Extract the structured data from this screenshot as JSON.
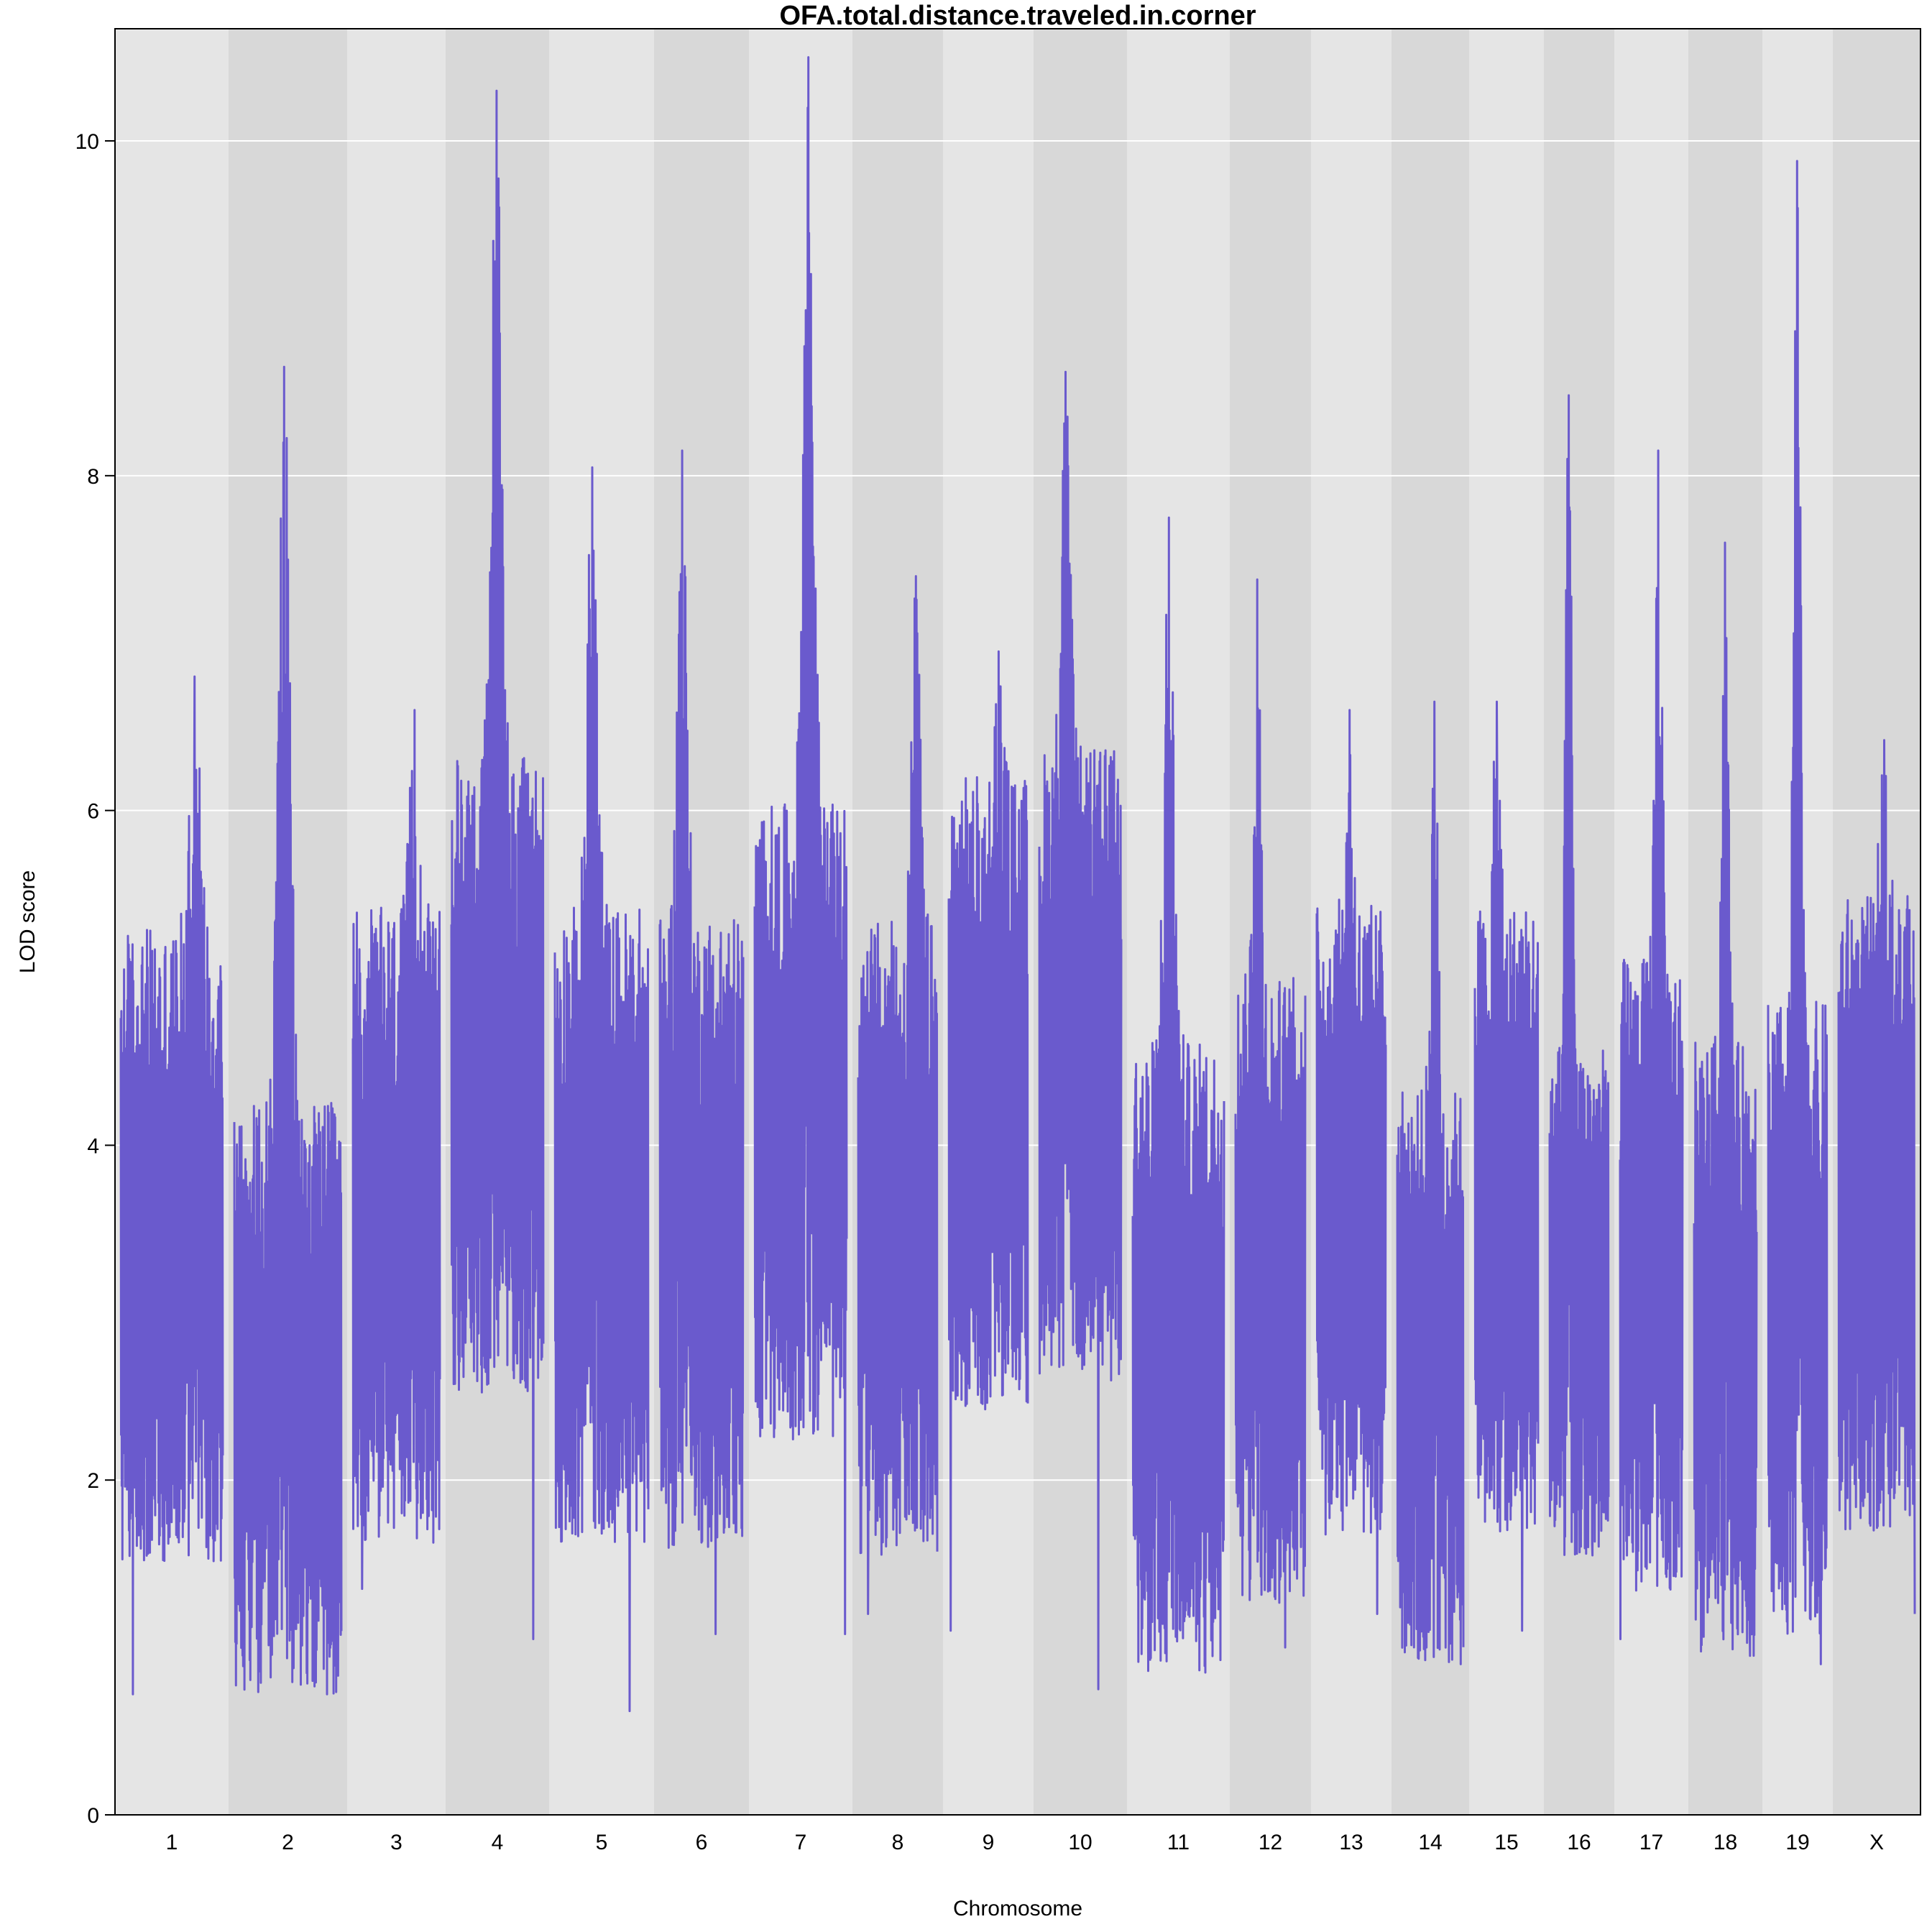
{
  "chart_data": {
    "type": "line",
    "title": "OFA.total.distance.traveled.in.corner",
    "xlabel": "Chromosome",
    "ylabel": "LOD score",
    "ylim": [
      0,
      10.67
    ],
    "yticks": [
      0,
      2,
      4,
      6,
      8,
      10
    ],
    "grid": "horizontal",
    "colors": {
      "line": "#6a5acd",
      "band_light": "#e5e5e5",
      "band_dark": "#d8d8d8",
      "grid": "#ffffff"
    },
    "chromosomes": [
      {
        "name": "1",
        "peak": 6.8,
        "trough": 0.72
      },
      {
        "name": "2",
        "peak": 8.65,
        "trough": 0.72
      },
      {
        "name": "3",
        "peak": 6.6,
        "trough": 1.35
      },
      {
        "name": "4",
        "peak": 10.3,
        "trough": 1.05
      },
      {
        "name": "5",
        "peak": 8.05,
        "trough": 0.62
      },
      {
        "name": "6",
        "peak": 8.15,
        "trough": 1.08
      },
      {
        "name": "7",
        "peak": 10.5,
        "trough": 1.08
      },
      {
        "name": "8",
        "peak": 7.4,
        "trough": 1.2
      },
      {
        "name": "9",
        "peak": 6.95,
        "trough": 1.1
      },
      {
        "name": "10",
        "peak": 8.62,
        "trough": 0.75
      },
      {
        "name": "11",
        "peak": 7.75,
        "trough": 0.85
      },
      {
        "name": "12",
        "peak": 7.38,
        "trough": 1.0
      },
      {
        "name": "13",
        "peak": 6.6,
        "trough": 1.2
      },
      {
        "name": "14",
        "peak": 6.65,
        "trough": 0.9
      },
      {
        "name": "15",
        "peak": 6.65,
        "trough": 1.1
      },
      {
        "name": "16",
        "peak": 8.48,
        "trough": 1.55
      },
      {
        "name": "17",
        "peak": 8.15,
        "trough": 1.05
      },
      {
        "name": "18",
        "peak": 7.6,
        "trough": 0.95
      },
      {
        "name": "19",
        "peak": 9.88,
        "trough": 0.9
      },
      {
        "name": "X",
        "peak": 6.42,
        "trough": 1.2
      }
    ]
  }
}
